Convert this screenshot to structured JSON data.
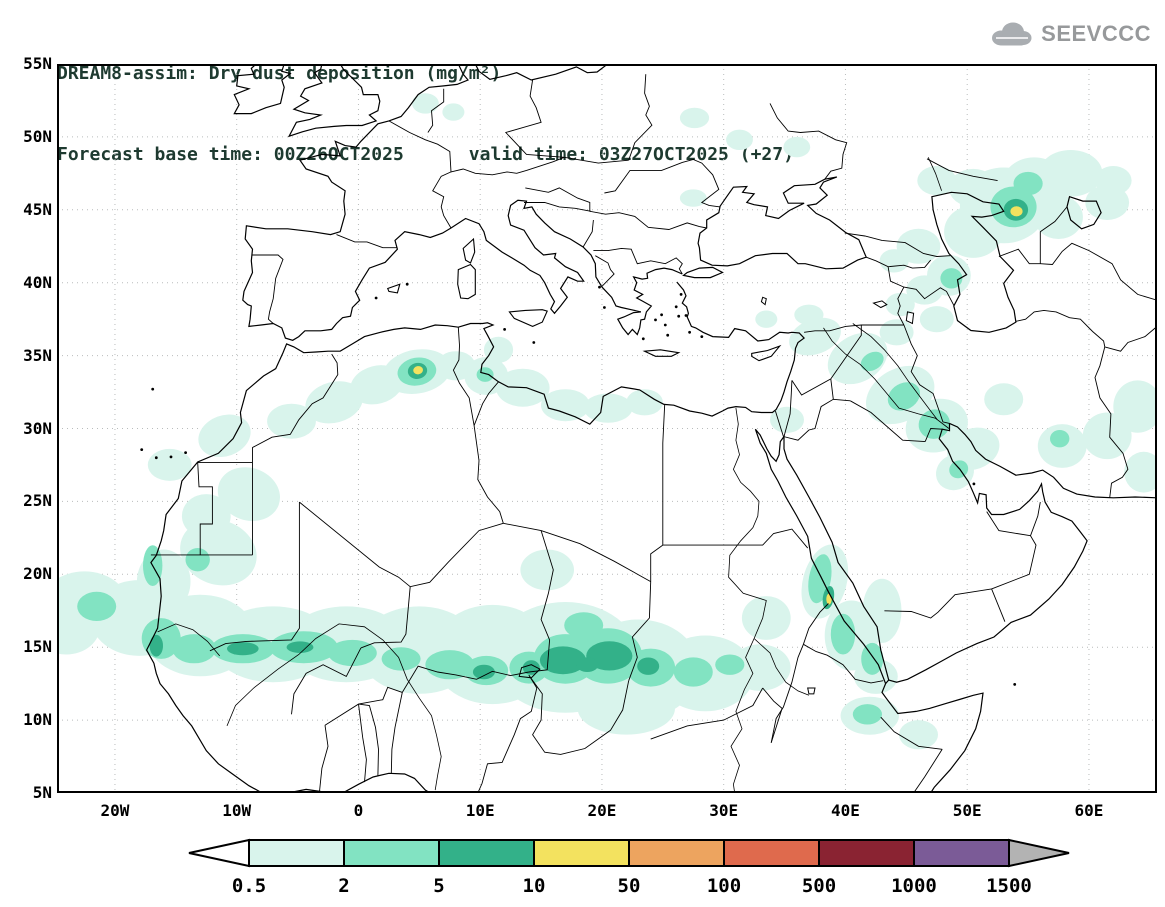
{
  "header": {
    "title_line1": "DREAM8-assim: Dry dust deposition (mg/m²)",
    "title_line2": "Forecast base time: 00Z26OCT2025      valid time: 03Z27OCT2025 (+27)",
    "logo_text": "SEEVCCC"
  },
  "axes": {
    "lat_ticks": [
      {
        "label": "55N",
        "value": 55
      },
      {
        "label": "50N",
        "value": 50
      },
      {
        "label": "45N",
        "value": 45
      },
      {
        "label": "40N",
        "value": 40
      },
      {
        "label": "35N",
        "value": 35
      },
      {
        "label": "30N",
        "value": 30
      },
      {
        "label": "25N",
        "value": 25
      },
      {
        "label": "20N",
        "value": 20
      },
      {
        "label": "15N",
        "value": 15
      },
      {
        "label": "10N",
        "value": 10
      },
      {
        "label": "5N",
        "value": 5
      }
    ],
    "lon_ticks": [
      {
        "label": "20W",
        "value": -20
      },
      {
        "label": "10W",
        "value": -10
      },
      {
        "label": "0",
        "value": 0
      },
      {
        "label": "10E",
        "value": 10
      },
      {
        "label": "20E",
        "value": 20
      },
      {
        "label": "30E",
        "value": 30
      },
      {
        "label": "40E",
        "value": 40
      },
      {
        "label": "50E",
        "value": 50
      },
      {
        "label": "60E",
        "value": 60
      }
    ]
  },
  "legend": {
    "values": [
      "0.5",
      "2",
      "5",
      "10",
      "50",
      "100",
      "500",
      "1000",
      "1500"
    ],
    "segment_colors": [
      "#ffffff",
      "#d9f4ec",
      "#82e3c2",
      "#33b189",
      "#f3e25f",
      "#eda45f",
      "#df6a4d",
      "#8a2332",
      "#7b5b97",
      "#b3b3b3"
    ]
  },
  "chart_data": {
    "type": "filled-contour-map",
    "model": "DREAM8-assim",
    "variable": "Dry dust deposition",
    "units": "mg/m²",
    "forecast_base_time": "00Z26OCT2025",
    "valid_time": "03Z27OCT2025",
    "forecast_hour": "+27",
    "map_extent": {
      "lon_min": -24.76,
      "lon_max": 65.6,
      "lat_min": 5,
      "lat_max": 55
    },
    "contour_levels": [
      0.5,
      2,
      5,
      10,
      50,
      100,
      500,
      1000,
      1500
    ],
    "level_colors": {
      "1": "#d9f4ec",
      "2": "#82e3c2",
      "3": "#33b189",
      "4": "#f3e25f"
    },
    "dust_regions": [
      [
        -24,
        16.5,
        2.8,
        2.0,
        0,
        1
      ],
      [
        -22.5,
        18.0,
        3.5,
        2.2,
        0,
        1
      ],
      [
        -18,
        17,
        4,
        2.6,
        0,
        1
      ],
      [
        -13,
        15.8,
        4.5,
        2.8,
        0,
        1
      ],
      [
        -7,
        15.2,
        5,
        2.6,
        0,
        1
      ],
      [
        -1,
        15.2,
        5,
        2.6,
        0,
        1
      ],
      [
        5,
        14.8,
        5,
        3.0,
        0,
        1
      ],
      [
        11,
        14.5,
        5,
        3.4,
        0,
        1
      ],
      [
        17,
        14.3,
        6,
        3.8,
        0,
        1
      ],
      [
        23,
        13.5,
        5,
        3.4,
        0,
        1
      ],
      [
        28.5,
        13.2,
        4,
        2.6,
        0,
        1
      ],
      [
        33,
        13.6,
        2.5,
        1.6,
        0,
        1
      ],
      [
        33.5,
        17,
        2,
        1.5,
        0,
        1
      ],
      [
        22,
        10.8,
        4,
        1.8,
        0,
        1
      ],
      [
        15.5,
        20.3,
        2.2,
        1.4,
        0,
        1
      ],
      [
        -16,
        19.5,
        2.2,
        2.2,
        0,
        1
      ],
      [
        -11.5,
        21.5,
        3.2,
        2.2,
        20,
        1
      ],
      [
        -9,
        25.5,
        2.6,
        1.8,
        20,
        1
      ],
      [
        -12.5,
        24,
        2,
        1.5,
        0,
        1
      ],
      [
        -15.5,
        27.5,
        1.8,
        1.1,
        0,
        1
      ],
      [
        -11,
        29.5,
        2.2,
        1.4,
        -20,
        1
      ],
      [
        -5.5,
        30.5,
        2,
        1.2,
        0,
        1
      ],
      [
        -2,
        31.8,
        2.4,
        1.4,
        -15,
        1
      ],
      [
        1.5,
        33,
        2.2,
        1.3,
        -15,
        1
      ],
      [
        4.8,
        33.9,
        2.8,
        1.5,
        -10,
        1
      ],
      [
        8,
        34.3,
        1.6,
        1.0,
        0,
        1
      ],
      [
        10.5,
        33.6,
        1.8,
        1.3,
        0,
        1
      ],
      [
        13.5,
        32.8,
        2.2,
        1.3,
        0,
        1
      ],
      [
        17,
        31.6,
        2,
        1.1,
        0,
        1
      ],
      [
        20.5,
        31.4,
        2,
        1.0,
        0,
        1
      ],
      [
        23.5,
        31.8,
        1.5,
        0.9,
        0,
        1
      ],
      [
        11.5,
        35.4,
        1.2,
        0.9,
        0,
        1
      ],
      [
        37.5,
        36.3,
        2.2,
        1.2,
        -20,
        1
      ],
      [
        41,
        34.8,
        2.6,
        1.6,
        -30,
        1
      ],
      [
        44.5,
        32.3,
        3,
        1.8,
        -30,
        1
      ],
      [
        47.5,
        30.2,
        2.6,
        1.8,
        -20,
        1
      ],
      [
        50.5,
        28.6,
        2.2,
        1.4,
        -20,
        1
      ],
      [
        44.2,
        36.6,
        1.4,
        0.9,
        0,
        1
      ],
      [
        35.2,
        30.6,
        1.4,
        0.9,
        0,
        1
      ],
      [
        38.3,
        19.5,
        1.8,
        2.6,
        15,
        1
      ],
      [
        40.5,
        15.8,
        2.2,
        2.4,
        0,
        1
      ],
      [
        43,
        17.5,
        1.6,
        2.2,
        0,
        1
      ],
      [
        42.5,
        13,
        1.8,
        1.2,
        0,
        1
      ],
      [
        42,
        10.3,
        2.4,
        1.3,
        0,
        1
      ],
      [
        46,
        9,
        1.6,
        1.0,
        0,
        1
      ],
      [
        49,
        27,
        1.6,
        1.2,
        -30,
        1
      ],
      [
        53,
        32,
        1.6,
        1.1,
        0,
        1
      ],
      [
        57.8,
        28.8,
        2,
        1.5,
        0,
        1
      ],
      [
        61.5,
        29.5,
        2,
        1.6,
        0,
        1
      ],
      [
        64,
        31.5,
        2,
        1.8,
        0,
        1
      ],
      [
        64.5,
        27,
        1.6,
        1.4,
        0,
        1
      ],
      [
        53,
        45.3,
        3.6,
        2.6,
        0,
        1
      ],
      [
        50.5,
        43.5,
        2.4,
        1.8,
        0,
        1
      ],
      [
        50.5,
        46.5,
        2,
        1.3,
        0,
        1
      ],
      [
        47.5,
        47,
        1.6,
        1.0,
        0,
        1
      ],
      [
        55.5,
        46.8,
        2.6,
        1.8,
        0,
        1
      ],
      [
        57.5,
        44.5,
        2,
        1.5,
        0,
        1
      ],
      [
        58.5,
        47.5,
        2.6,
        1.6,
        0,
        1
      ],
      [
        61.5,
        45.5,
        1.8,
        1.2,
        0,
        1
      ],
      [
        62,
        47,
        1.5,
        1.0,
        0,
        1
      ],
      [
        48.5,
        40.5,
        1.8,
        1.4,
        0,
        1
      ],
      [
        46,
        42.5,
        1.8,
        1.2,
        0,
        1
      ],
      [
        44,
        41.5,
        1.2,
        0.8,
        0,
        1
      ],
      [
        44.5,
        38.5,
        1.2,
        0.8,
        0,
        1
      ],
      [
        46.5,
        39.5,
        1.5,
        1.0,
        0,
        1
      ],
      [
        47.5,
        37.5,
        1.4,
        0.9,
        0,
        1
      ],
      [
        37,
        37.8,
        1.2,
        0.7,
        0,
        1
      ],
      [
        33.5,
        37.5,
        0.9,
        0.6,
        0,
        1
      ],
      [
        5.5,
        52.3,
        1.1,
        0.7,
        0,
        1
      ],
      [
        7.8,
        51.7,
        0.9,
        0.6,
        0,
        1
      ],
      [
        27.6,
        51.3,
        1.2,
        0.7,
        0,
        1
      ],
      [
        31.3,
        49.8,
        1.1,
        0.7,
        0,
        1
      ],
      [
        36,
        49.3,
        1.1,
        0.7,
        0,
        1
      ],
      [
        27.5,
        45.8,
        1.1,
        0.6,
        0,
        1
      ],
      [
        -16.2,
        15.6,
        1.6,
        1.4,
        0,
        2
      ],
      [
        -13.5,
        14.9,
        1.8,
        1.0,
        0,
        2
      ],
      [
        -9.5,
        14.9,
        2.6,
        1.0,
        0,
        2
      ],
      [
        -4.5,
        15.0,
        2.8,
        1.1,
        0,
        2
      ],
      [
        -0.5,
        14.6,
        2,
        0.9,
        0,
        2
      ],
      [
        3.5,
        14.2,
        1.6,
        0.8,
        0,
        2
      ],
      [
        7.5,
        13.8,
        2,
        1.0,
        0,
        2
      ],
      [
        10.5,
        13.4,
        1.8,
        1.0,
        0,
        2
      ],
      [
        14,
        13.6,
        1.6,
        1.1,
        0,
        2
      ],
      [
        17,
        14.2,
        2.6,
        1.7,
        0,
        2
      ],
      [
        20.5,
        14.4,
        2.8,
        1.9,
        0,
        2
      ],
      [
        24,
        13.6,
        2,
        1.3,
        0,
        2
      ],
      [
        27.5,
        13.3,
        1.6,
        1.0,
        0,
        2
      ],
      [
        30.5,
        13.8,
        1.2,
        0.7,
        0,
        2
      ],
      [
        18.5,
        16.5,
        1.6,
        0.9,
        0,
        2
      ],
      [
        -16.9,
        20.6,
        0.8,
        1.4,
        0,
        2
      ],
      [
        -13.2,
        21,
        1.0,
        0.8,
        0,
        2
      ],
      [
        4.8,
        33.9,
        1.6,
        0.95,
        -10,
        2
      ],
      [
        10.4,
        33.7,
        0.7,
        0.5,
        0,
        2
      ],
      [
        37.9,
        19.7,
        0.9,
        1.7,
        10,
        2
      ],
      [
        39.8,
        15.9,
        1.0,
        1.4,
        0,
        2
      ],
      [
        42.2,
        14.2,
        0.9,
        1.1,
        0,
        2
      ],
      [
        44.8,
        32.2,
        1.4,
        0.9,
        -30,
        2
      ],
      [
        47.3,
        30.3,
        1.3,
        1.0,
        -20,
        2
      ],
      [
        42.2,
        34.6,
        1.0,
        0.6,
        -30,
        2
      ],
      [
        53.8,
        45.2,
        1.9,
        1.4,
        0,
        2
      ],
      [
        55,
        46.8,
        1.2,
        0.8,
        0,
        2
      ],
      [
        48.7,
        40.3,
        0.9,
        0.7,
        0,
        2
      ],
      [
        -21.5,
        17.8,
        1.6,
        1.0,
        0,
        2
      ],
      [
        41.8,
        10.4,
        1.2,
        0.7,
        0,
        2
      ],
      [
        49.3,
        27.2,
        0.8,
        0.6,
        -30,
        2
      ],
      [
        57.6,
        29.3,
        0.8,
        0.6,
        0,
        2
      ],
      [
        -16.6,
        15.1,
        0.55,
        0.75,
        0,
        3
      ],
      [
        -9.5,
        14.9,
        1.3,
        0.45,
        0,
        3
      ],
      [
        -4.8,
        15.0,
        1.1,
        0.4,
        0,
        3
      ],
      [
        16.8,
        14.1,
        1.9,
        0.95,
        0,
        3
      ],
      [
        20.6,
        14.4,
        1.9,
        1.0,
        0,
        3
      ],
      [
        18.8,
        13.8,
        0.9,
        0.5,
        0,
        3
      ],
      [
        23.8,
        13.7,
        0.9,
        0.6,
        0,
        3
      ],
      [
        10.3,
        13.3,
        0.9,
        0.5,
        0,
        3
      ],
      [
        14.2,
        13.6,
        0.7,
        0.5,
        0,
        3
      ],
      [
        4.85,
        33.95,
        0.8,
        0.55,
        -10,
        3
      ],
      [
        54.0,
        45.0,
        1.0,
        0.75,
        0,
        3
      ],
      [
        38.6,
        18.4,
        0.45,
        0.8,
        10,
        3
      ],
      [
        4.9,
        34.0,
        0.4,
        0.28,
        -10,
        4
      ],
      [
        54.05,
        44.9,
        0.5,
        0.35,
        0,
        4
      ],
      [
        38.65,
        18.3,
        0.22,
        0.38,
        0,
        4
      ]
    ]
  }
}
